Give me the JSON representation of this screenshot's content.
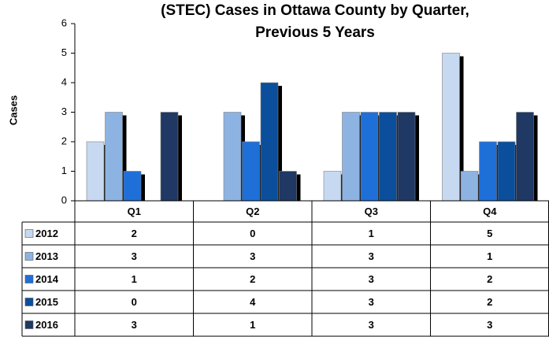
{
  "chart_data": {
    "type": "bar",
    "title": "(STEC) Cases in Ottawa County by Quarter, Previous 5 Years",
    "y_label": "Cases",
    "categories": [
      "Q1",
      "Q2",
      "Q3",
      "Q4"
    ],
    "series": [
      {
        "name": "2012",
        "color": "#c6d9f1",
        "values": [
          2,
          0,
          1,
          5
        ]
      },
      {
        "name": "2013",
        "color": "#8db3e2",
        "values": [
          3,
          3,
          3,
          1
        ]
      },
      {
        "name": "2014",
        "color": "#1f6fd8",
        "values": [
          1,
          2,
          3,
          2
        ]
      },
      {
        "name": "2015",
        "color": "#0b4f9c",
        "values": [
          0,
          4,
          3,
          2
        ]
      },
      {
        "name": "2016",
        "color": "#1f3864",
        "values": [
          3,
          1,
          3,
          3
        ]
      }
    ],
    "ylim": [
      0,
      6
    ],
    "yticks": [
      0,
      1,
      2,
      3,
      4,
      5,
      6
    ],
    "grid": false
  }
}
